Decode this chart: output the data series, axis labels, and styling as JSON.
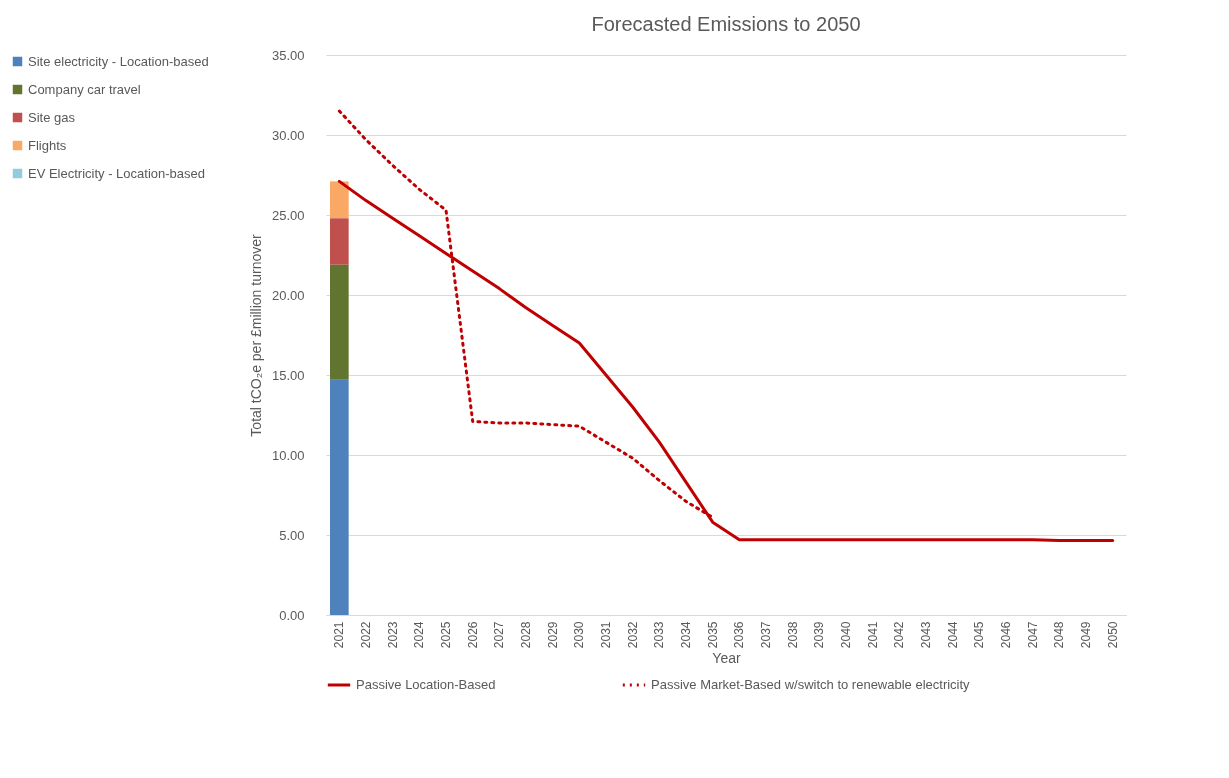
{
  "chart_data": {
    "type": "bar",
    "stacked": true,
    "title": "Forecasted Emissions to 2050",
    "xlabel": "Year",
    "ylabel": "Total tCO₂e per £million turnover",
    "categories": [
      "2021",
      "2022",
      "2023",
      "2024",
      "2025",
      "2026",
      "2027",
      "2028",
      "2029",
      "2030",
      "2031",
      "2032",
      "2033",
      "2034",
      "2035",
      "2036",
      "2037",
      "2038",
      "2039",
      "2040",
      "2041",
      "2042",
      "2043",
      "2044",
      "2045",
      "2046",
      "2047",
      "2048",
      "2049",
      "2050"
    ],
    "series": [
      {
        "name": "Site electricity - Location-based",
        "color": "#4f81bd",
        "values": [
          14.7,
          null,
          null,
          null,
          null,
          null,
          null,
          null,
          null,
          null,
          null,
          null,
          null,
          null,
          null,
          null,
          null,
          null,
          null,
          null,
          null,
          null,
          null,
          null,
          null,
          null,
          null,
          null,
          null,
          null
        ]
      },
      {
        "name": "Company car travel",
        "color": "#617430",
        "values": [
          7.2,
          null,
          null,
          null,
          null,
          null,
          null,
          null,
          null,
          null,
          null,
          null,
          null,
          null,
          null,
          null,
          null,
          null,
          null,
          null,
          null,
          null,
          null,
          null,
          null,
          null,
          null,
          null,
          null,
          null
        ]
      },
      {
        "name": "Site gas",
        "color": "#c0504d",
        "values": [
          2.9,
          null,
          null,
          null,
          null,
          null,
          null,
          null,
          null,
          null,
          null,
          null,
          null,
          null,
          null,
          null,
          null,
          null,
          null,
          null,
          null,
          null,
          null,
          null,
          null,
          null,
          null,
          null,
          null,
          null
        ]
      },
      {
        "name": "Flights",
        "color": "#f9a965",
        "values": [
          2.3,
          null,
          null,
          null,
          null,
          null,
          null,
          null,
          null,
          null,
          null,
          null,
          null,
          null,
          null,
          null,
          null,
          null,
          null,
          null,
          null,
          null,
          null,
          null,
          null,
          null,
          null,
          null,
          null,
          null
        ]
      },
      {
        "name": "EV Electricity - Location-based",
        "color": "#93cddd",
        "values": [
          0,
          null,
          null,
          null,
          null,
          null,
          null,
          null,
          null,
          null,
          null,
          null,
          null,
          null,
          null,
          null,
          null,
          null,
          null,
          null,
          null,
          null,
          null,
          null,
          null,
          null,
          null,
          null,
          null,
          null
        ]
      },
      {
        "name": "Passive Location-Based",
        "type": "line",
        "line_style": "solid",
        "color": "#c00000",
        "values": [
          27.1,
          25.9,
          24.8,
          23.7,
          22.6,
          21.5,
          20.4,
          19.2,
          18.1,
          17.0,
          15.0,
          13.0,
          10.8,
          8.3,
          5.8,
          4.7,
          4.7,
          4.7,
          4.7,
          4.7,
          4.7,
          4.7,
          4.7,
          4.7,
          4.7,
          4.7,
          4.7,
          4.65,
          4.65,
          4.65
        ]
      },
      {
        "name": "Passive Market-Based w/switch to renewable electricity",
        "type": "line",
        "line_style": "dotted",
        "color": "#c00000",
        "values": [
          31.5,
          29.7,
          28.1,
          26.6,
          25.3,
          12.1,
          12.0,
          12.0,
          11.9,
          11.8,
          10.8,
          9.8,
          8.4,
          7.1,
          6.1,
          null,
          null,
          null,
          null,
          null,
          null,
          null,
          null,
          null,
          null,
          null,
          null,
          null,
          null,
          null
        ]
      }
    ],
    "ylim": [
      0,
      35
    ],
    "yticks": [
      {
        "value": 0,
        "label": "0.00"
      },
      {
        "value": 5,
        "label": "5.00"
      },
      {
        "value": 10,
        "label": "10.00"
      },
      {
        "value": 15,
        "label": "15.00"
      },
      {
        "value": 20,
        "label": "20.00"
      },
      {
        "value": 25,
        "label": "25.00"
      },
      {
        "value": 30,
        "label": "30.00"
      },
      {
        "value": 35,
        "label": "35.00"
      }
    ],
    "grid": "y",
    "legend": "left"
  }
}
